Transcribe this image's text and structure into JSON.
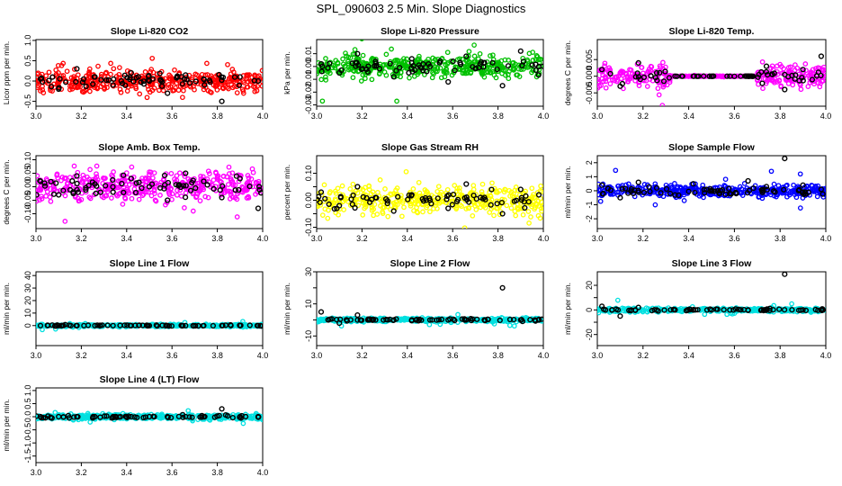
{
  "figure_title": "SPL_090603  2.5 Min. Slope Diagnostics",
  "chart_data": [
    {
      "type": "scatter",
      "title": "Slope Li-820 CO2",
      "ylabel": "Licor ppm per min.",
      "color": "#ff0000",
      "xlim": [
        3.0,
        4.0
      ],
      "ylim": [
        -0.62,
        1.02
      ],
      "xticks": [
        3.0,
        3.2,
        3.4,
        3.6,
        3.8,
        4.0
      ],
      "xtick_labels": [
        "3.0",
        "3.2",
        "3.4",
        "3.6",
        "3.8",
        "4.0"
      ],
      "yticks": [
        -0.5,
        0.0,
        0.5,
        1.0
      ],
      "ytick_labels": [
        "-0.5",
        "0.0",
        "0.5",
        "1.0"
      ],
      "spread": 0.22,
      "center": 0.0,
      "x": [
        3.02,
        3.1,
        3.18,
        3.26,
        3.34,
        3.42,
        3.5,
        3.58,
        3.66,
        3.74,
        3.82,
        3.9,
        3.98
      ],
      "y": [
        0.05,
        -0.2,
        0.3,
        0.1,
        -0.1,
        0.2,
        0.0,
        -0.3,
        0.15,
        0.05,
        -0.5,
        0.1,
        0.0
      ]
    },
    {
      "type": "scatter",
      "title": "Slope Li-820 Pressure",
      "ylabel": "kPa per min.",
      "color": "#00c000",
      "xlim": [
        3.0,
        4.0
      ],
      "ylim": [
        -0.031,
        0.021
      ],
      "xticks": [
        3.0,
        3.2,
        3.4,
        3.6,
        3.8,
        4.0
      ],
      "xtick_labels": [
        "3.0",
        "3.2",
        "3.4",
        "3.6",
        "3.8",
        "4.0"
      ],
      "yticks": [
        -0.03,
        -0.02,
        -0.01,
        0.0,
        0.01
      ],
      "ytick_labels": [
        "-0.03",
        "-0.02",
        "-0.01",
        "0.00",
        "0.01"
      ],
      "spread": 0.007,
      "center": 0.0,
      "x": [
        3.02,
        3.1,
        3.18,
        3.26,
        3.34,
        3.42,
        3.5,
        3.58,
        3.66,
        3.74,
        3.82,
        3.9,
        3.98
      ],
      "y": [
        0.002,
        -0.005,
        0.01,
        0.004,
        -0.008,
        0.006,
        0.0,
        -0.012,
        0.008,
        0.003,
        -0.015,
        0.012,
        0.0
      ]
    },
    {
      "type": "scatter",
      "title": "Slope Li-820 Temp.",
      "ylabel": "degrees C per min.",
      "color": "#ff00ff",
      "xlim": [
        3.0,
        4.0
      ],
      "ylim": [
        -0.009,
        0.011
      ],
      "xticks": [
        3.0,
        3.2,
        3.4,
        3.6,
        3.8,
        4.0
      ],
      "xtick_labels": [
        "3.0",
        "3.2",
        "3.4",
        "3.6",
        "3.8",
        "4.0"
      ],
      "yticks": [
        -0.005,
        0.0,
        0.005
      ],
      "ytick_labels": [
        "-0.005",
        "0.000",
        "0.005"
      ],
      "spread": 0.003,
      "center": 0.0,
      "quiet": [
        3.32,
        3.7
      ],
      "x": [
        3.02,
        3.1,
        3.18,
        3.26,
        3.34,
        3.42,
        3.5,
        3.58,
        3.66,
        3.74,
        3.82,
        3.9,
        3.98
      ],
      "y": [
        0.002,
        -0.003,
        0.004,
        0.001,
        0.0,
        0.0,
        0.0,
        0.0,
        0.0,
        0.003,
        -0.004,
        0.002,
        0.006
      ]
    },
    {
      "type": "scatter",
      "title": "Slope Amb. Box Temp.",
      "ylabel": "degrees C per min.",
      "color": "#ff00ff",
      "xlim": [
        3.0,
        4.0
      ],
      "ylim": [
        -0.155,
        0.115
      ],
      "xticks": [
        3.0,
        3.2,
        3.4,
        3.6,
        3.8,
        4.0
      ],
      "xtick_labels": [
        "3.0",
        "3.2",
        "3.4",
        "3.6",
        "3.8",
        "4.0"
      ],
      "yticks": [
        -0.1,
        -0.05,
        0.0,
        0.05,
        0.1
      ],
      "ytick_labels": [
        "-0.10",
        "-0.05",
        "0.00",
        "0.05",
        "0.10"
      ],
      "spread": 0.045,
      "center": 0.0,
      "x": [
        3.02,
        3.1,
        3.18,
        3.26,
        3.34,
        3.42,
        3.5,
        3.58,
        3.66,
        3.74,
        3.82,
        3.9,
        3.98
      ],
      "y": [
        0.02,
        -0.03,
        0.04,
        0.01,
        -0.02,
        0.03,
        0.0,
        -0.05,
        0.05,
        0.02,
        -0.04,
        0.03,
        -0.08
      ]
    },
    {
      "type": "scatter",
      "title": "Slope Gas Stream RH",
      "ylabel": "percent per min.",
      "color": "#ffff00",
      "xlim": [
        3.0,
        4.0
      ],
      "ylim": [
        -0.105,
        0.165
      ],
      "xticks": [
        3.0,
        3.2,
        3.4,
        3.6,
        3.8,
        4.0
      ],
      "xtick_labels": [
        "3.0",
        "3.2",
        "3.4",
        "3.6",
        "3.8",
        "4.0"
      ],
      "yticks": [
        -0.1,
        -0.05,
        0.0,
        0.05,
        0.1
      ],
      "ytick_labels": [
        "-0.10",
        "0.00",
        "0.10"
      ],
      "ytick_label_values": [
        -0.1,
        0.0,
        0.1
      ],
      "spread": 0.04,
      "center": 0.0,
      "x": [
        3.02,
        3.1,
        3.18,
        3.26,
        3.34,
        3.42,
        3.5,
        3.58,
        3.66,
        3.74,
        3.82,
        3.9,
        3.98
      ],
      "y": [
        0.03,
        -0.02,
        0.05,
        0.01,
        -0.04,
        0.02,
        0.0,
        -0.03,
        0.06,
        0.01,
        -0.05,
        0.04,
        0.02
      ]
    },
    {
      "type": "scatter",
      "title": "Slope Sample Flow",
      "ylabel": "ml/min per min.",
      "color": "#0000ff",
      "xlim": [
        3.0,
        4.0
      ],
      "ylim": [
        -2.7,
        2.5
      ],
      "xticks": [
        3.0,
        3.2,
        3.4,
        3.6,
        3.8,
        4.0
      ],
      "xtick_labels": [
        "3.0",
        "3.2",
        "3.4",
        "3.6",
        "3.8",
        "4.0"
      ],
      "yticks": [
        -2,
        -1,
        0,
        1,
        2
      ],
      "ytick_labels": [
        "-2",
        "-1",
        "0",
        "1",
        "2"
      ],
      "spread": 0.35,
      "center": 0.0,
      "x": [
        3.02,
        3.1,
        3.18,
        3.26,
        3.34,
        3.42,
        3.5,
        3.58,
        3.66,
        3.74,
        3.82,
        3.9,
        3.98
      ],
      "y": [
        0.4,
        -0.5,
        0.6,
        0.2,
        -0.3,
        0.5,
        0.0,
        -0.2,
        0.7,
        0.3,
        2.3,
        0.4,
        0.1
      ]
    },
    {
      "type": "scatter",
      "title": "Slope Line 1 Flow",
      "ylabel": "ml/min per min.",
      "color": "#00e0e0",
      "xlim": [
        3.0,
        4.0
      ],
      "ylim": [
        -16,
        43
      ],
      "xticks": [
        3.0,
        3.2,
        3.4,
        3.6,
        3.8,
        4.0
      ],
      "xtick_labels": [
        "3.0",
        "3.2",
        "3.4",
        "3.6",
        "3.8",
        "4.0"
      ],
      "yticks": [
        0,
        10,
        20,
        30,
        40
      ],
      "ytick_labels": [
        "0",
        "10",
        "20",
        "30",
        "40"
      ],
      "spread": 0.8,
      "center": 0.0,
      "x": [
        3.02,
        3.1,
        3.18,
        3.26,
        3.34,
        3.42,
        3.5,
        3.58,
        3.66,
        3.74,
        3.82,
        3.9,
        3.98
      ],
      "y": [
        0,
        0,
        0,
        0,
        0,
        0,
        0,
        0,
        0,
        0,
        0,
        0,
        0
      ]
    },
    {
      "type": "scatter",
      "title": "Slope Line 2 Flow",
      "ylabel": "ml/min per min.",
      "color": "#00e0e0",
      "xlim": [
        3.0,
        4.0
      ],
      "ylim": [
        -16,
        30
      ],
      "xticks": [
        3.0,
        3.2,
        3.4,
        3.6,
        3.8,
        4.0
      ],
      "xtick_labels": [
        "3.0",
        "3.2",
        "3.4",
        "3.6",
        "3.8",
        "4.0"
      ],
      "yticks": [
        -10,
        0,
        10,
        20,
        30
      ],
      "ytick_labels": [
        "-10",
        "10",
        "30"
      ],
      "ytick_label_values": [
        -10,
        10,
        30
      ],
      "spread": 1.0,
      "center": 0.0,
      "x": [
        3.02,
        3.1,
        3.18,
        3.26,
        3.34,
        3.42,
        3.5,
        3.58,
        3.66,
        3.74,
        3.82,
        3.9,
        3.98
      ],
      "y": [
        5,
        -2,
        3,
        0,
        0,
        0,
        0,
        0,
        0,
        0,
        20,
        0,
        0
      ]
    },
    {
      "type": "scatter",
      "title": "Slope Line 3 Flow",
      "ylabel": "ml/min per min.",
      "color": "#00e0e0",
      "xlim": [
        3.0,
        4.0
      ],
      "ylim": [
        -29,
        31
      ],
      "xticks": [
        3.0,
        3.2,
        3.4,
        3.6,
        3.8,
        4.0
      ],
      "xtick_labels": [
        "3.0",
        "3.2",
        "3.4",
        "3.6",
        "3.8",
        "4.0"
      ],
      "yticks": [
        -20,
        -10,
        0,
        10,
        20
      ],
      "ytick_labels": [
        "-20",
        "0",
        "20"
      ],
      "ytick_label_values": [
        -20,
        0,
        20
      ],
      "spread": 1.2,
      "center": 0.0,
      "x": [
        3.02,
        3.1,
        3.18,
        3.26,
        3.34,
        3.42,
        3.5,
        3.58,
        3.66,
        3.74,
        3.82,
        3.9,
        3.98
      ],
      "y": [
        3,
        -5,
        2,
        0,
        0,
        0,
        0,
        0,
        0,
        0,
        29,
        0,
        0
      ]
    },
    {
      "type": "scatter",
      "title": "Slope Line 4 (LT) Flow",
      "ylabel": "ml/min per min.",
      "color": "#00e0e0",
      "xlim": [
        3.0,
        4.0
      ],
      "ylim": [
        -1.75,
        1.1
      ],
      "xticks": [
        3.0,
        3.2,
        3.4,
        3.6,
        3.8,
        4.0
      ],
      "xtick_labels": [
        "3.0",
        "3.2",
        "3.4",
        "3.6",
        "3.8",
        "4.0"
      ],
      "yticks": [
        -1.5,
        -1.0,
        -0.5,
        0.0,
        0.5,
        1.0
      ],
      "ytick_labels": [
        "-1.5",
        "-1.0",
        "-0.5",
        "0.0",
        "0.5",
        "1.0"
      ],
      "spread": 0.08,
      "center": 0.0,
      "x": [
        3.02,
        3.1,
        3.18,
        3.26,
        3.34,
        3.42,
        3.5,
        3.58,
        3.66,
        3.74,
        3.82,
        3.9,
        3.98
      ],
      "y": [
        0,
        0,
        0,
        0,
        0,
        0,
        0,
        0,
        0,
        0,
        0.3,
        0,
        0
      ]
    }
  ]
}
